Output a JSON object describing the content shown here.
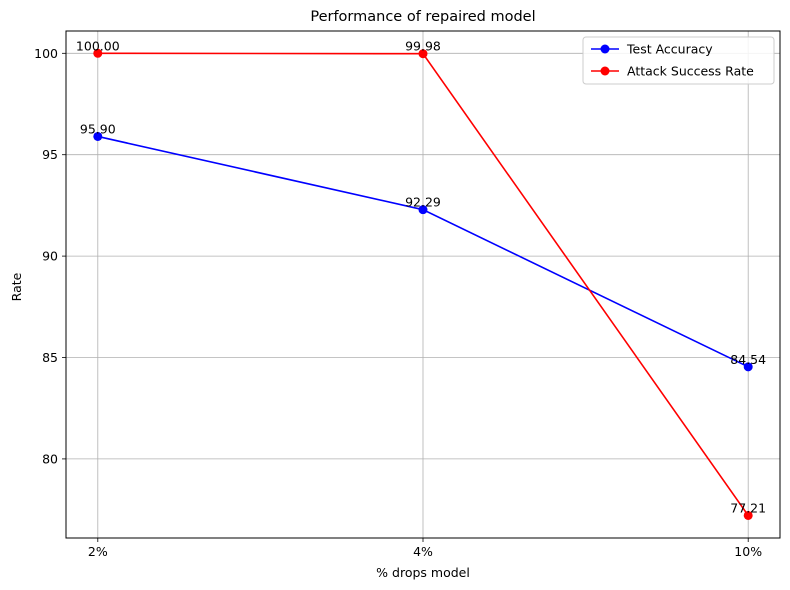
{
  "chart_data": {
    "type": "line",
    "title": "Performance of repaired model",
    "xlabel": "% drops model",
    "ylabel": "Rate",
    "categories": [
      "2%",
      "4%",
      "10%"
    ],
    "ylim": [
      76.1,
      101.1
    ],
    "yticks": [
      80,
      85,
      90,
      95,
      100
    ],
    "grid": true,
    "legend_position": "top-right",
    "series": [
      {
        "name": "Test Accuracy",
        "color": "#0000ff",
        "values": [
          95.9,
          92.29,
          84.54
        ],
        "labels": [
          "95.90",
          "92.29",
          "84.54"
        ]
      },
      {
        "name": "Attack Success Rate",
        "color": "#ff0000",
        "values": [
          100.0,
          99.98,
          77.21
        ],
        "labels": [
          "100.00",
          "99.98",
          "77.21"
        ]
      }
    ]
  }
}
